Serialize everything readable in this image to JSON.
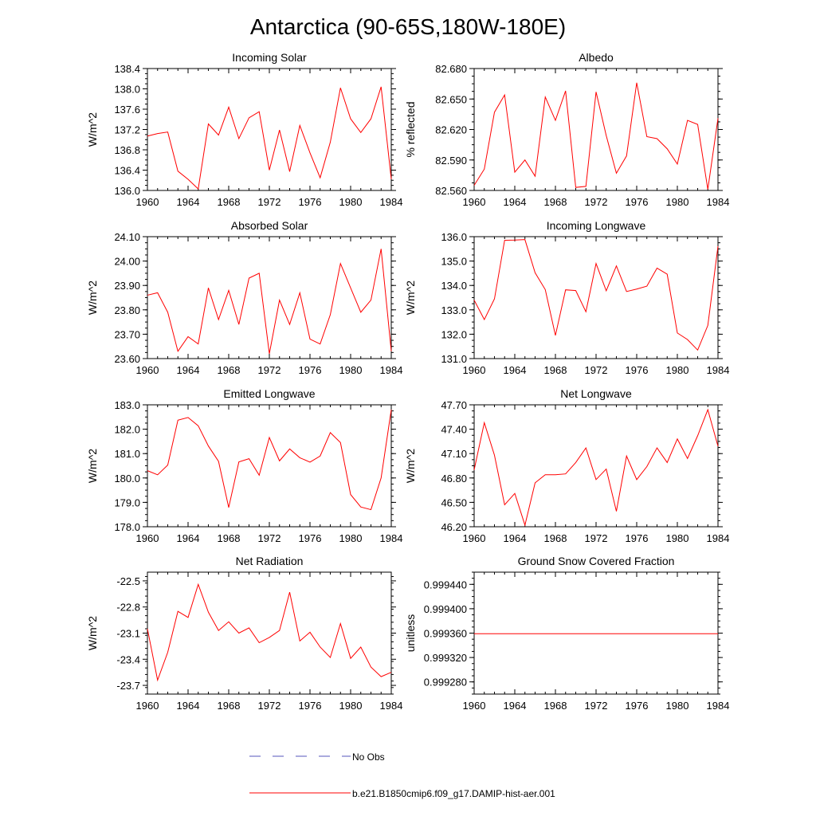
{
  "page_title": "Antarctica (90-65S,180W-180E)",
  "legend": {
    "obs_label": "No Obs",
    "model_label": "b.e21.B1850cmip6.f09_g17.DAMIP-hist-aer.001",
    "obs_color": "#5555bb",
    "model_color": "#ff0000"
  },
  "chart_data": [
    {
      "type": "line",
      "title": "Incoming Solar",
      "ylabel": "W/m^2",
      "xlim": [
        1960,
        1984
      ],
      "ylim": [
        136.0,
        138.4
      ],
      "xticks": [
        "1960",
        "1964",
        "1968",
        "1972",
        "1976",
        "1980",
        "1984"
      ],
      "yticks": [
        "136.0",
        "136.4",
        "136.8",
        "137.2",
        "137.6",
        "138.0",
        "138.4"
      ],
      "x": [
        1960,
        1961,
        1962,
        1963,
        1964,
        1965,
        1966,
        1967,
        1968,
        1969,
        1970,
        1971,
        1972,
        1973,
        1974,
        1975,
        1976,
        1977,
        1978,
        1979,
        1980,
        1981,
        1982,
        1983,
        1984
      ],
      "series": [
        {
          "values": [
            137.07,
            137.12,
            137.15,
            136.38,
            136.22,
            136.03,
            137.31,
            137.09,
            137.64,
            137.02,
            137.43,
            137.55,
            136.4,
            137.19,
            136.37,
            137.28,
            136.74,
            136.25,
            136.95,
            138.02,
            137.41,
            137.14,
            137.41,
            138.04,
            136.22
          ]
        }
      ]
    },
    {
      "type": "line",
      "title": "Albedo",
      "ylabel": "% reflected",
      "xlim": [
        1960,
        1984
      ],
      "ylim": [
        82.56,
        82.68
      ],
      "xticks": [
        "1960",
        "1964",
        "1968",
        "1972",
        "1976",
        "1980",
        "1984"
      ],
      "yticks": [
        "82.560",
        "82.590",
        "82.620",
        "82.650",
        "82.680"
      ],
      "x": [
        1960,
        1961,
        1962,
        1963,
        1964,
        1965,
        1966,
        1967,
        1968,
        1969,
        1970,
        1971,
        1972,
        1973,
        1974,
        1975,
        1976,
        1977,
        1978,
        1979,
        1980,
        1981,
        1982,
        1983,
        1984
      ],
      "series": [
        {
          "values": [
            82.565,
            82.581,
            82.637,
            82.654,
            82.578,
            82.59,
            82.574,
            82.652,
            82.629,
            82.658,
            82.563,
            82.564,
            82.657,
            82.614,
            82.577,
            82.594,
            82.666,
            82.613,
            82.611,
            82.601,
            82.586,
            82.629,
            82.625,
            82.561,
            82.631
          ]
        }
      ]
    },
    {
      "type": "line",
      "title": "Absorbed Solar",
      "ylabel": "W/m^2",
      "xlim": [
        1960,
        1984
      ],
      "ylim": [
        23.6,
        24.1
      ],
      "xticks": [
        "1960",
        "1964",
        "1968",
        "1972",
        "1976",
        "1980",
        "1984"
      ],
      "yticks": [
        "23.60",
        "23.70",
        "23.80",
        "23.90",
        "24.00",
        "24.10"
      ],
      "x": [
        1960,
        1961,
        1962,
        1963,
        1964,
        1965,
        1966,
        1967,
        1968,
        1969,
        1970,
        1971,
        1972,
        1973,
        1974,
        1975,
        1976,
        1977,
        1978,
        1979,
        1980,
        1981,
        1982,
        1983,
        1984
      ],
      "series": [
        {
          "values": [
            23.86,
            23.87,
            23.79,
            23.63,
            23.69,
            23.66,
            23.89,
            23.76,
            23.88,
            23.74,
            23.93,
            23.95,
            23.62,
            23.84,
            23.74,
            23.87,
            23.68,
            23.66,
            23.78,
            23.99,
            23.89,
            23.79,
            23.84,
            24.05,
            23.63
          ]
        }
      ]
    },
    {
      "type": "line",
      "title": "Incoming Longwave",
      "ylabel": "W/m^2",
      "xlim": [
        1960,
        1984
      ],
      "ylim": [
        131.0,
        136.0
      ],
      "xticks": [
        "1960",
        "1964",
        "1968",
        "1972",
        "1976",
        "1980",
        "1984"
      ],
      "yticks": [
        "131.0",
        "132.0",
        "133.0",
        "134.0",
        "135.0",
        "136.0"
      ],
      "x": [
        1960,
        1961,
        1962,
        1963,
        1964,
        1965,
        1966,
        1967,
        1968,
        1969,
        1970,
        1971,
        1972,
        1973,
        1974,
        1975,
        1976,
        1977,
        1978,
        1979,
        1980,
        1981,
        1982,
        1983,
        1984
      ],
      "series": [
        {
          "values": [
            133.4,
            132.6,
            133.45,
            135.85,
            135.86,
            135.88,
            134.52,
            133.83,
            131.95,
            133.82,
            133.79,
            132.92,
            134.9,
            133.78,
            134.8,
            133.75,
            133.85,
            133.97,
            134.71,
            134.46,
            132.05,
            131.78,
            131.35,
            132.36,
            135.61
          ]
        }
      ]
    },
    {
      "type": "line",
      "title": "Emitted Longwave",
      "ylabel": "W/m^2",
      "xlim": [
        1960,
        1984
      ],
      "ylim": [
        178.0,
        183.0
      ],
      "xticks": [
        "1960",
        "1964",
        "1968",
        "1972",
        "1976",
        "1980",
        "1984"
      ],
      "yticks": [
        "178.0",
        "179.0",
        "180.0",
        "181.0",
        "182.0",
        "183.0"
      ],
      "x": [
        1960,
        1961,
        1962,
        1963,
        1964,
        1965,
        1966,
        1967,
        1968,
        1969,
        1970,
        1971,
        1972,
        1973,
        1974,
        1975,
        1976,
        1977,
        1978,
        1979,
        1980,
        1981,
        1982,
        1983,
        1984
      ],
      "series": [
        {
          "values": [
            180.3,
            180.13,
            180.53,
            182.37,
            182.48,
            182.14,
            181.31,
            180.68,
            178.79,
            180.66,
            180.79,
            180.11,
            181.66,
            180.7,
            181.19,
            180.83,
            180.65,
            180.9,
            181.86,
            181.45,
            179.32,
            178.81,
            178.7,
            180.0,
            182.8
          ]
        }
      ]
    },
    {
      "type": "line",
      "title": "Net Longwave",
      "ylabel": "W/m^2",
      "xlim": [
        1960,
        1984
      ],
      "ylim": [
        46.2,
        47.7
      ],
      "xticks": [
        "1960",
        "1964",
        "1968",
        "1972",
        "1976",
        "1980",
        "1984"
      ],
      "yticks": [
        "46.20",
        "46.50",
        "46.80",
        "47.10",
        "47.40",
        "47.70"
      ],
      "x": [
        1960,
        1961,
        1962,
        1963,
        1964,
        1965,
        1966,
        1967,
        1968,
        1969,
        1970,
        1971,
        1972,
        1973,
        1974,
        1975,
        1976,
        1977,
        1978,
        1979,
        1980,
        1981,
        1982,
        1983,
        1984
      ],
      "series": [
        {
          "values": [
            46.9,
            47.48,
            47.08,
            46.47,
            46.61,
            46.22,
            46.74,
            46.84,
            46.84,
            46.85,
            46.99,
            47.17,
            46.78,
            46.91,
            46.39,
            47.07,
            46.78,
            46.94,
            47.17,
            46.99,
            47.28,
            47.04,
            47.32,
            47.64,
            47.19
          ]
        }
      ]
    },
    {
      "type": "line",
      "title": "Net Radiation",
      "ylabel": "W/m^2",
      "xlim": [
        1960,
        1984
      ],
      "ylim": [
        -23.8,
        -22.4
      ],
      "xticks": [
        "1960",
        "1964",
        "1968",
        "1972",
        "1976",
        "1980",
        "1984"
      ],
      "yticks": [
        "-23.7",
        "-23.4",
        "-23.1",
        "-22.8",
        "-22.5"
      ],
      "x": [
        1960,
        1961,
        1962,
        1963,
        1964,
        1965,
        1966,
        1967,
        1968,
        1969,
        1970,
        1971,
        1972,
        1973,
        1974,
        1975,
        1976,
        1977,
        1978,
        1979,
        1980,
        1981,
        1982,
        1983,
        1984
      ],
      "series": [
        {
          "values": [
            -23.05,
            -23.64,
            -23.32,
            -22.85,
            -22.92,
            -22.54,
            -22.86,
            -23.07,
            -22.97,
            -23.1,
            -23.04,
            -23.21,
            -23.15,
            -23.07,
            -22.63,
            -23.19,
            -23.09,
            -23.26,
            -23.38,
            -22.99,
            -23.39,
            -23.26,
            -23.49,
            -23.6,
            -23.55
          ]
        }
      ]
    },
    {
      "type": "line",
      "title": "Ground Snow Covered Fraction",
      "ylabel": "unitless",
      "xlim": [
        1960,
        1984
      ],
      "ylim": [
        0.99926,
        0.99946
      ],
      "xticks": [
        "1960",
        "1964",
        "1968",
        "1972",
        "1976",
        "1980",
        "1984"
      ],
      "yticks": [
        "0.999280",
        "0.999320",
        "0.999360",
        "0.999400",
        "0.999440"
      ],
      "x": [
        1960,
        1961,
        1962,
        1963,
        1964,
        1965,
        1966,
        1967,
        1968,
        1969,
        1970,
        1971,
        1972,
        1973,
        1974,
        1975,
        1976,
        1977,
        1978,
        1979,
        1980,
        1981,
        1982,
        1983,
        1984
      ],
      "series": [
        {
          "values": [
            0.999359,
            0.999359,
            0.999359,
            0.999359,
            0.999359,
            0.999359,
            0.999359,
            0.999359,
            0.999359,
            0.999359,
            0.999359,
            0.999359,
            0.999359,
            0.999359,
            0.999359,
            0.999359,
            0.999359,
            0.999359,
            0.999359,
            0.999359,
            0.999359,
            0.999359,
            0.999359,
            0.999359,
            0.999359
          ]
        }
      ]
    }
  ]
}
